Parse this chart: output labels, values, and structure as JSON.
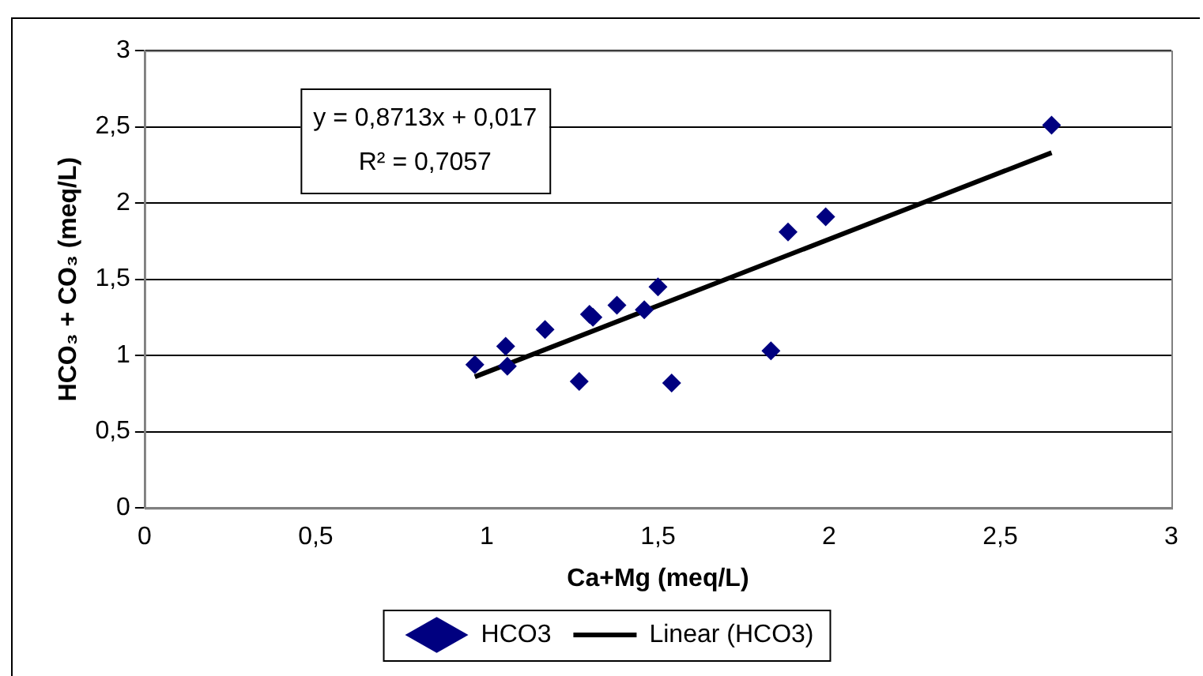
{
  "chart_data": {
    "type": "scatter",
    "xlabel": "Ca+Mg (meq/L)",
    "ylabel": "HCO₃ + CO₃ (meq/L)",
    "annotations": [
      "y = 0,8713x + 0,017",
      "R² = 0,7057"
    ],
    "x": [
      0.965,
      1.055,
      1.06,
      1.17,
      1.27,
      1.3,
      1.31,
      1.38,
      1.46,
      1.5,
      1.54,
      1.83,
      1.88,
      1.99,
      2.65
    ],
    "series": [
      {
        "name": "HCO3",
        "color": "#000080",
        "marker": "diamond",
        "values": [
          0.94,
          1.06,
          0.93,
          1.17,
          0.83,
          1.27,
          1.25,
          1.33,
          1.3,
          1.45,
          0.82,
          1.03,
          1.81,
          1.91,
          2.51
        ]
      },
      {
        "name": "Linear (HCO3)",
        "type": "line",
        "color": "#000000",
        "marker": "none",
        "line_style": "solid",
        "x": [
          0.965,
          2.65
        ],
        "values": [
          0.86,
          2.33
        ]
      }
    ],
    "xlim": [
      0,
      3
    ],
    "ylim": [
      0,
      3
    ],
    "xticks": [
      0,
      {
        "value": 0.5,
        "label": "0,5"
      },
      1,
      {
        "value": 1.5,
        "label": "1,5"
      },
      2,
      {
        "value": 2.5,
        "label": "2,5"
      },
      3
    ],
    "yticks": [
      0,
      {
        "value": 0.5,
        "label": "0,5"
      },
      1,
      {
        "value": 1.5,
        "label": "1,5"
      },
      2,
      {
        "value": 2.5,
        "label": "2,5"
      },
      3
    ],
    "grid": "y",
    "legend": "bottom"
  }
}
